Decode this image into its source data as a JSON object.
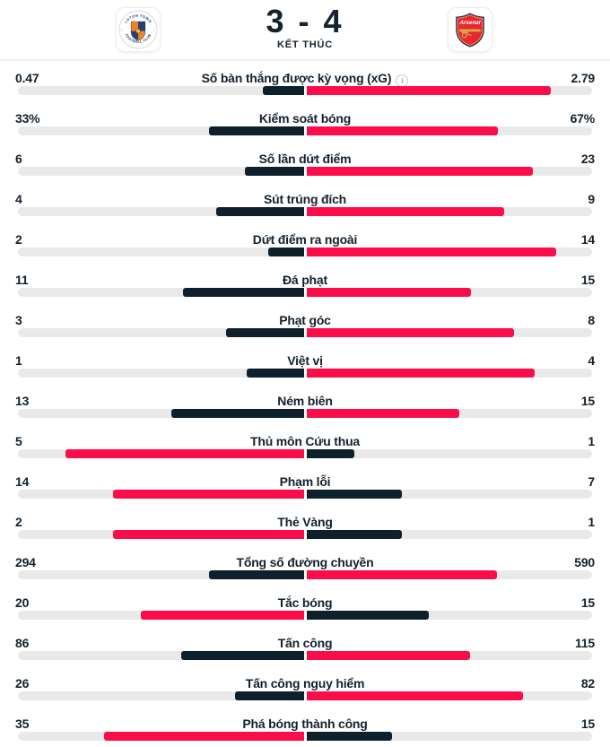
{
  "header": {
    "score": "3 - 4",
    "status": "KẾT THÚC",
    "home_team": "Luton Town",
    "away_team": "Arsenal",
    "home_logo_text_top": "LUTON TOWN",
    "home_logo_text_bottom": "FOOTBALL CLUB",
    "away_logo_text": "Arsenal"
  },
  "colors": {
    "bar_leading": "#fb0d4a",
    "bar_trailing": "#0e202c",
    "bar_track": "#e9e9e9",
    "text_primary": "#13212e"
  },
  "stats": {
    "info_icon": "i",
    "rows": [
      {
        "label": "Số bàn thắng được kỳ vọng (xG)",
        "home": "0.47",
        "away": "2.79",
        "info": true
      },
      {
        "label": "Kiểm soát bóng",
        "home": "33%",
        "away": "67%"
      },
      {
        "label": "Số lần dứt điểm",
        "home": "6",
        "away": "23"
      },
      {
        "label": "Sút trúng đích",
        "home": "4",
        "away": "9"
      },
      {
        "label": "Dứt điểm ra ngoài",
        "home": "2",
        "away": "14"
      },
      {
        "label": "Đá phạt",
        "home": "11",
        "away": "15"
      },
      {
        "label": "Phạt góc",
        "home": "3",
        "away": "8"
      },
      {
        "label": "Việt vị",
        "home": "1",
        "away": "4"
      },
      {
        "label": "Ném biên",
        "home": "13",
        "away": "15"
      },
      {
        "label": "Thủ môn Cứu thua",
        "home": "5",
        "away": "1"
      },
      {
        "label": "Phạm lỗi",
        "home": "14",
        "away": "7"
      },
      {
        "label": "Thẻ Vàng",
        "home": "2",
        "away": "1"
      },
      {
        "label": "Tổng số đường chuyền",
        "home": "294",
        "away": "590"
      },
      {
        "label": "Tắc bóng",
        "home": "20",
        "away": "15"
      },
      {
        "label": "Tấn công",
        "home": "86",
        "away": "115"
      },
      {
        "label": "Tấn công nguy hiểm",
        "home": "26",
        "away": "82"
      },
      {
        "label": "Phá bóng thành công",
        "home": "35",
        "away": "15"
      }
    ]
  }
}
